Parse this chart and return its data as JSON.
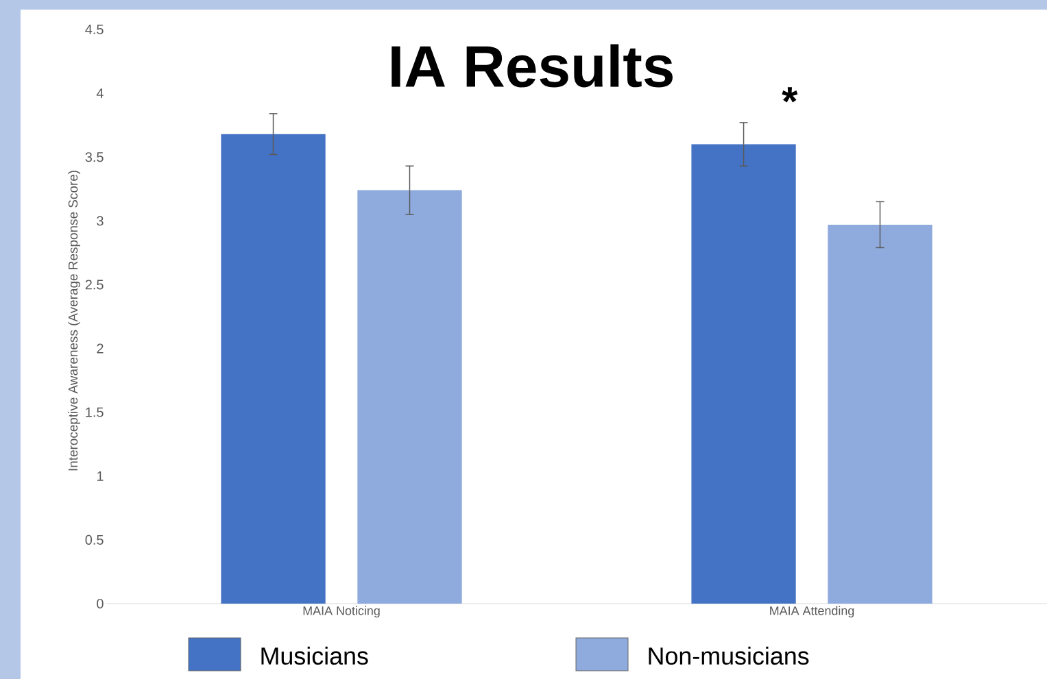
{
  "chart_data": {
    "type": "bar",
    "title": "IA Results",
    "ylabel": "Interoceptive Awareness (Average Response Score)",
    "categories": [
      "MAIA Noticing",
      "MAIA Attending"
    ],
    "series": [
      {
        "name": "Musicians",
        "color": "#4472c4",
        "values": [
          3.68,
          3.6
        ],
        "errors": [
          0.16,
          0.17
        ]
      },
      {
        "name": "Non-musicians",
        "color": "#8faadc",
        "values": [
          3.24,
          2.97
        ],
        "errors": [
          0.19,
          0.18
        ]
      }
    ],
    "ylim": [
      0,
      4.5
    ],
    "yticks": [
      0,
      0.5,
      1,
      1.5,
      2,
      2.5,
      3,
      3.5,
      4,
      4.5
    ],
    "annotations": [
      "*"
    ],
    "legend": "bottom"
  }
}
